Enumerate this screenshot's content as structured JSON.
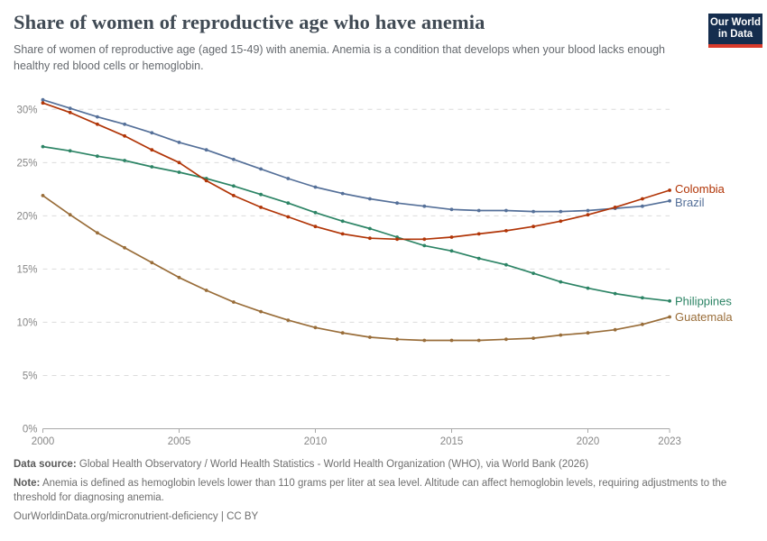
{
  "header": {
    "title": "Share of women of reproductive age who have anemia",
    "subtitle": "Share of women of reproductive age (aged 15-49) with anemia. Anemia is a condition that develops when your blood lacks enough healthy red blood cells or hemoglobin."
  },
  "logo": {
    "line1": "Our World",
    "line2": "in Data",
    "bg_color": "#152d4e",
    "stripe_color": "#d93a2b"
  },
  "chart_data": {
    "type": "line",
    "title": "Share of women of reproductive age who have anemia",
    "xlabel": "",
    "ylabel": "",
    "x": [
      2000,
      2001,
      2002,
      2003,
      2004,
      2005,
      2006,
      2007,
      2008,
      2009,
      2010,
      2011,
      2012,
      2013,
      2014,
      2015,
      2016,
      2017,
      2018,
      2019,
      2020,
      2021,
      2022,
      2023
    ],
    "series": [
      {
        "name": "Colombia",
        "color": "#b13507",
        "values": [
          30.6,
          29.7,
          28.6,
          27.5,
          26.2,
          25.0,
          23.3,
          21.9,
          20.8,
          19.9,
          19.0,
          18.3,
          17.9,
          17.8,
          17.8,
          18.0,
          18.3,
          18.6,
          19.0,
          19.5,
          20.1,
          20.8,
          21.6,
          22.4
        ]
      },
      {
        "name": "Brazil",
        "color": "#557099",
        "values": [
          30.9,
          30.1,
          29.3,
          28.6,
          27.8,
          26.9,
          26.2,
          25.3,
          24.4,
          23.5,
          22.7,
          22.1,
          21.6,
          21.2,
          20.9,
          20.6,
          20.5,
          20.5,
          20.4,
          20.4,
          20.5,
          20.7,
          20.9,
          21.4
        ]
      },
      {
        "name": "Philippines",
        "color": "#2c8465",
        "values": [
          26.5,
          26.1,
          25.6,
          25.2,
          24.6,
          24.1,
          23.5,
          22.8,
          22.0,
          21.2,
          20.3,
          19.5,
          18.8,
          18.0,
          17.2,
          16.7,
          16.0,
          15.4,
          14.6,
          13.8,
          13.2,
          12.7,
          12.3,
          12.0
        ]
      },
      {
        "name": "Guatemala",
        "color": "#996d39",
        "values": [
          21.9,
          20.1,
          18.4,
          17.0,
          15.6,
          14.2,
          13.0,
          11.9,
          11.0,
          10.2,
          9.5,
          9.0,
          8.6,
          8.4,
          8.3,
          8.3,
          8.3,
          8.4,
          8.5,
          8.8,
          9.0,
          9.3,
          9.8,
          10.5
        ]
      }
    ],
    "x_ticks": [
      2000,
      2005,
      2010,
      2015,
      2020,
      2023
    ],
    "y_ticks": [
      0,
      5,
      10,
      15,
      20,
      25,
      30
    ],
    "y_tick_suffix": "%",
    "ylim": [
      0,
      31.5
    ],
    "grid": true,
    "legend_position": "right-edge-labels"
  },
  "footer": {
    "data_source_label": "Data source:",
    "data_source_text": "Global Health Observatory / World Health Statistics - World Health Organization (WHO), via World Bank (2026)",
    "note_label": "Note:",
    "note_text": "Anemia is defined as hemoglobin levels lower than 110 grams per liter at sea level. Altitude can affect hemoglobin levels, requiring adjustments to the threshold for diagnosing anemia.",
    "url_text": "OurWorldinData.org/micronutrient-deficiency",
    "separator": " | ",
    "license_text": "CC BY"
  }
}
